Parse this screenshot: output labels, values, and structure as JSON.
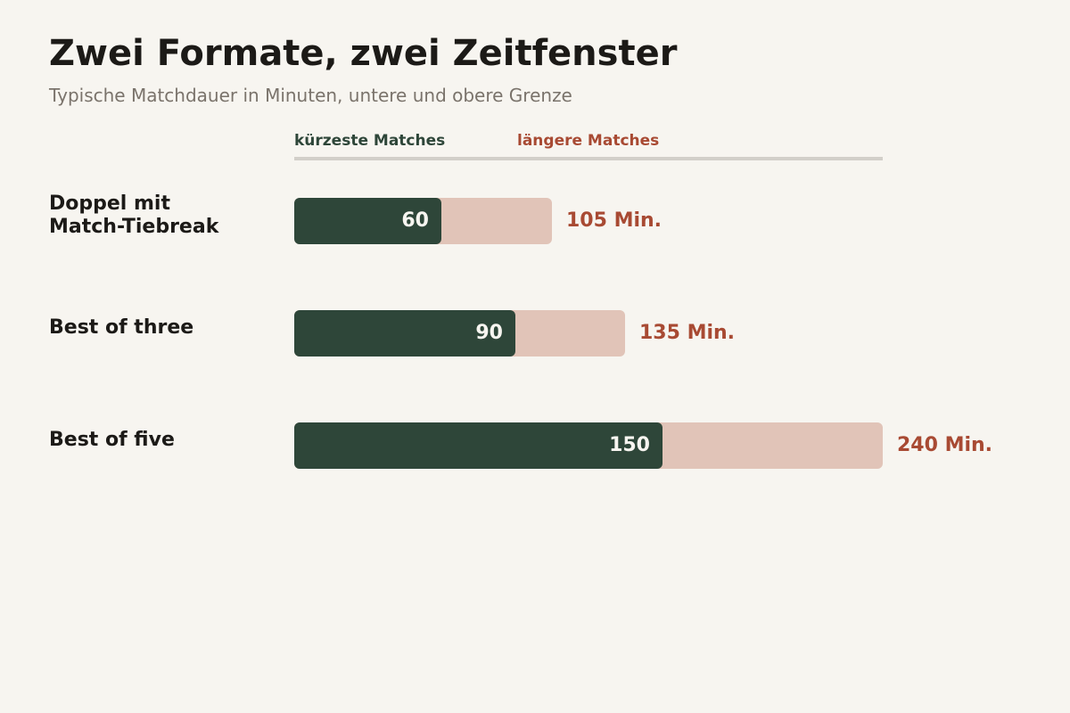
{
  "title": "Zwei Formate, zwei Zeitfenster",
  "subtitle": "Typische Matchdauer in Minuten, untere und obere Grenze",
  "colors": {
    "short": "#2e4639",
    "long_bar": "#e1c4b8",
    "long_text": "#a84a33",
    "background": "#f7f5f0"
  },
  "chart_data": {
    "type": "bar",
    "title": "Zwei Formate, zwei Zeitfenster",
    "subtitle": "Typische Matchdauer in Minuten, untere und obere Grenze",
    "orientation": "horizontal",
    "xlim": [
      0,
      240
    ],
    "grid": false,
    "legend_placement": "top",
    "categories": [
      "Doppel mit\nMatch-Tiebreak",
      "Best of three",
      "Best of five"
    ],
    "series": [
      {
        "name": "kürzeste Matches",
        "values": [
          60,
          90,
          150
        ],
        "labels": [
          "60",
          "90",
          "150"
        ]
      },
      {
        "name": "längere Matches",
        "values": [
          105,
          135,
          240
        ],
        "labels": [
          "105 Min.",
          "135 Min.",
          "240 Min."
        ]
      }
    ]
  }
}
